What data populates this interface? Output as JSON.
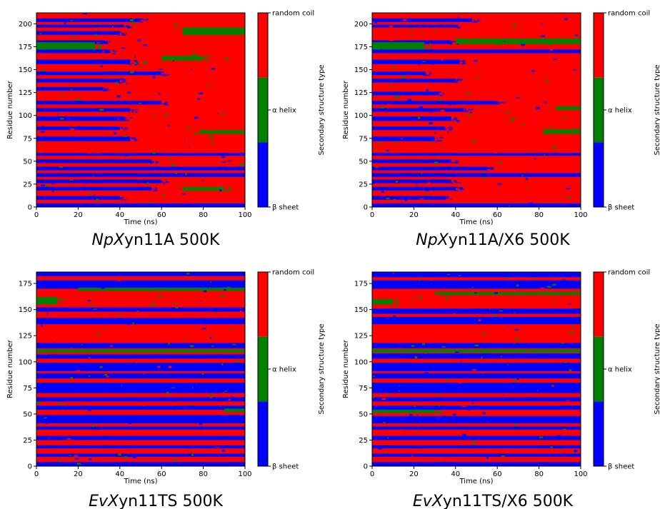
{
  "legend_colors": {
    "beta_sheet": "#0000ff",
    "alpha_helix": "#008000",
    "random_coil": "#ff0000"
  },
  "chart_data": [
    {
      "type": "heatmap",
      "caption": {
        "italic": "NpX",
        "rest": "yn11A 500K"
      },
      "xlabel": "Time (ns)",
      "ylabel": "Residue number",
      "xlim": [
        0,
        100
      ],
      "ylim": [
        0,
        212
      ],
      "xticks": [
        0,
        20,
        40,
        60,
        80,
        100
      ],
      "yticks": [
        0,
        25,
        50,
        75,
        100,
        125,
        150,
        175,
        200
      ],
      "colorbar": {
        "label": "Secondary structure type",
        "ticks": [
          "β sheet",
          "α helix",
          "random coil"
        ]
      },
      "bands": [
        {
          "y0": 0,
          "y1": 4,
          "state": "beta_sheet",
          "until": 100
        },
        {
          "y0": 8,
          "y1": 12,
          "state": "beta_sheet",
          "until": 40
        },
        {
          "y0": 18,
          "y1": 22,
          "state": "beta_sheet",
          "until": 55
        },
        {
          "y0": 26,
          "y1": 30,
          "state": "beta_sheet",
          "until": 60
        },
        {
          "y0": 33,
          "y1": 37,
          "state": "beta_sheet",
          "until": 100
        },
        {
          "y0": 40,
          "y1": 44,
          "state": "beta_sheet",
          "until": 100
        },
        {
          "y0": 48,
          "y1": 52,
          "state": "beta_sheet",
          "until": 55
        },
        {
          "y0": 56,
          "y1": 59,
          "state": "beta_sheet",
          "until": 100
        },
        {
          "y0": 72,
          "y1": 77,
          "state": "beta_sheet",
          "until": 45
        },
        {
          "y0": 84,
          "y1": 88,
          "state": "beta_sheet",
          "until": 40
        },
        {
          "y0": 94,
          "y1": 99,
          "state": "beta_sheet",
          "until": 42
        },
        {
          "y0": 104,
          "y1": 108,
          "state": "beta_sheet",
          "until": 45
        },
        {
          "y0": 112,
          "y1": 116,
          "state": "beta_sheet",
          "until": 60
        },
        {
          "y0": 127,
          "y1": 131,
          "state": "beta_sheet",
          "until": 32
        },
        {
          "y0": 136,
          "y1": 140,
          "state": "beta_sheet",
          "until": 40
        },
        {
          "y0": 144,
          "y1": 148,
          "state": "beta_sheet",
          "until": 60
        },
        {
          "y0": 156,
          "y1": 161,
          "state": "beta_sheet",
          "until": 45
        },
        {
          "y0": 168,
          "y1": 172,
          "state": "beta_sheet",
          "until": 35
        },
        {
          "y0": 178,
          "y1": 182,
          "state": "beta_sheet",
          "until": 33
        },
        {
          "y0": 188,
          "y1": 192,
          "state": "beta_sheet",
          "until": 40
        },
        {
          "y0": 196,
          "y1": 199,
          "state": "beta_sheet",
          "until": 42
        },
        {
          "y0": 202,
          "y1": 206,
          "state": "beta_sheet",
          "until": 50
        },
        {
          "y0": 172,
          "y1": 180,
          "state": "alpha_helix",
          "x0": 0,
          "until": 28
        },
        {
          "y0": 188,
          "y1": 196,
          "state": "alpha_helix",
          "x0": 70,
          "until": 100
        },
        {
          "y0": 160,
          "y1": 165,
          "state": "alpha_helix",
          "x0": 60,
          "until": 80
        },
        {
          "y0": 80,
          "y1": 84,
          "state": "alpha_helix",
          "x0": 78,
          "until": 100
        },
        {
          "y0": 18,
          "y1": 22,
          "state": "alpha_helix",
          "x0": 70,
          "until": 90
        }
      ]
    },
    {
      "type": "heatmap",
      "caption": {
        "italic": "NpX",
        "rest": "yn11A/X6 500K"
      },
      "xlabel": "Time (ns)",
      "ylabel": "Residue number",
      "xlim": [
        0,
        100
      ],
      "ylim": [
        0,
        212
      ],
      "xticks": [
        0,
        20,
        40,
        60,
        80,
        100
      ],
      "yticks": [
        0,
        25,
        50,
        75,
        100,
        125,
        150,
        175,
        200
      ],
      "colorbar": {
        "label": "Secondary structure type",
        "ticks": [
          "β sheet",
          "α helix",
          "random coil"
        ]
      },
      "bands": [
        {
          "y0": 0,
          "y1": 4,
          "state": "beta_sheet",
          "until": 100
        },
        {
          "y0": 8,
          "y1": 12,
          "state": "beta_sheet",
          "until": 35
        },
        {
          "y0": 18,
          "y1": 22,
          "state": "beta_sheet",
          "until": 40
        },
        {
          "y0": 26,
          "y1": 30,
          "state": "beta_sheet",
          "until": 38
        },
        {
          "y0": 33,
          "y1": 37,
          "state": "beta_sheet",
          "until": 100
        },
        {
          "y0": 40,
          "y1": 44,
          "state": "beta_sheet",
          "until": 55
        },
        {
          "y0": 48,
          "y1": 52,
          "state": "beta_sheet",
          "until": 38
        },
        {
          "y0": 56,
          "y1": 59,
          "state": "beta_sheet",
          "until": 100
        },
        {
          "y0": 72,
          "y1": 77,
          "state": "beta_sheet",
          "until": 30
        },
        {
          "y0": 84,
          "y1": 88,
          "state": "beta_sheet",
          "until": 35
        },
        {
          "y0": 94,
          "y1": 99,
          "state": "beta_sheet",
          "until": 38
        },
        {
          "y0": 104,
          "y1": 108,
          "state": "beta_sheet",
          "until": 45
        },
        {
          "y0": 112,
          "y1": 116,
          "state": "beta_sheet",
          "until": 60
        },
        {
          "y0": 122,
          "y1": 126,
          "state": "beta_sheet",
          "until": 32
        },
        {
          "y0": 136,
          "y1": 140,
          "state": "beta_sheet",
          "until": 40
        },
        {
          "y0": 144,
          "y1": 148,
          "state": "beta_sheet",
          "until": 25
        },
        {
          "y0": 156,
          "y1": 161,
          "state": "beta_sheet",
          "until": 42
        },
        {
          "y0": 168,
          "y1": 172,
          "state": "beta_sheet",
          "until": 100
        },
        {
          "y0": 178,
          "y1": 182,
          "state": "beta_sheet",
          "until": 38
        },
        {
          "y0": 196,
          "y1": 199,
          "state": "beta_sheet",
          "until": 40
        },
        {
          "y0": 202,
          "y1": 206,
          "state": "beta_sheet",
          "until": 48
        },
        {
          "y0": 172,
          "y1": 180,
          "state": "alpha_helix",
          "x0": 0,
          "until": 25
        },
        {
          "y0": 178,
          "y1": 184,
          "state": "alpha_helix",
          "x0": 40,
          "until": 100
        },
        {
          "y0": 80,
          "y1": 85,
          "state": "alpha_helix",
          "x0": 82,
          "until": 100
        },
        {
          "y0": 106,
          "y1": 110,
          "state": "alpha_helix",
          "x0": 88,
          "until": 100
        }
      ]
    },
    {
      "type": "heatmap",
      "caption": {
        "italic": "EvX",
        "rest": "yn11TS 500K"
      },
      "xlabel": "Time (ns)",
      "ylabel": "Residue number",
      "xlim": [
        0,
        100
      ],
      "ylim": [
        0,
        186
      ],
      "xticks": [
        0,
        20,
        40,
        60,
        80,
        100
      ],
      "yticks": [
        0,
        25,
        50,
        75,
        100,
        125,
        150,
        175
      ],
      "colorbar": {
        "label": "Secondary structure type",
        "ticks": [
          "β sheet",
          "α helix",
          "random coil"
        ]
      },
      "bands": [
        {
          "y0": 0,
          "y1": 4,
          "state": "beta_sheet",
          "until": 100
        },
        {
          "y0": 9,
          "y1": 12,
          "state": "beta_sheet",
          "until": 100
        },
        {
          "y0": 17,
          "y1": 20,
          "state": "beta_sheet",
          "until": 100
        },
        {
          "y0": 25,
          "y1": 29,
          "state": "beta_sheet",
          "until": 100
        },
        {
          "y0": 35,
          "y1": 38,
          "state": "beta_sheet",
          "until": 100
        },
        {
          "y0": 41,
          "y1": 49,
          "state": "beta_sheet",
          "until": 100
        },
        {
          "y0": 54,
          "y1": 58,
          "state": "beta_sheet",
          "until": 100
        },
        {
          "y0": 62,
          "y1": 66,
          "state": "beta_sheet",
          "until": 100
        },
        {
          "y0": 70,
          "y1": 80,
          "state": "beta_sheet",
          "until": 100
        },
        {
          "y0": 84,
          "y1": 89,
          "state": "beta_sheet",
          "until": 100
        },
        {
          "y0": 91,
          "y1": 99,
          "state": "beta_sheet",
          "until": 100
        },
        {
          "y0": 103,
          "y1": 107,
          "state": "beta_sheet",
          "until": 100
        },
        {
          "y0": 113,
          "y1": 118,
          "state": "beta_sheet",
          "until": 100
        },
        {
          "y0": 136,
          "y1": 142,
          "state": "beta_sheet",
          "until": 100
        },
        {
          "y0": 148,
          "y1": 152,
          "state": "beta_sheet",
          "until": 100
        },
        {
          "y0": 170,
          "y1": 178,
          "state": "beta_sheet",
          "until": 100
        },
        {
          "y0": 182,
          "y1": 186,
          "state": "beta_sheet",
          "until": 100
        },
        {
          "y0": 109,
          "y1": 112,
          "state": "alpha_helix",
          "x0": 0,
          "until": 100
        },
        {
          "y0": 155,
          "y1": 162,
          "state": "alpha_helix",
          "x0": 0,
          "until": 10
        },
        {
          "y0": 52,
          "y1": 55,
          "state": "alpha_helix",
          "x0": 90,
          "until": 100
        },
        {
          "y0": 168,
          "y1": 171,
          "state": "alpha_helix",
          "x0": 20,
          "until": 100
        }
      ]
    },
    {
      "type": "heatmap",
      "caption": {
        "italic": "EvX",
        "rest": "yn11TS/X6 500K"
      },
      "xlabel": "Time (ns)",
      "ylabel": "Residue number",
      "xlim": [
        0,
        100
      ],
      "ylim": [
        0,
        186
      ],
      "xticks": [
        0,
        20,
        40,
        60,
        80,
        100
      ],
      "yticks": [
        0,
        25,
        50,
        75,
        100,
        125,
        150,
        175
      ],
      "colorbar": {
        "label": "Secondary structure type",
        "ticks": [
          "β sheet",
          "α helix",
          "random coil"
        ]
      },
      "bands": [
        {
          "y0": 0,
          "y1": 4,
          "state": "beta_sheet",
          "until": 100
        },
        {
          "y0": 9,
          "y1": 12,
          "state": "beta_sheet",
          "until": 100
        },
        {
          "y0": 17,
          "y1": 20,
          "state": "beta_sheet",
          "until": 100
        },
        {
          "y0": 25,
          "y1": 29,
          "state": "beta_sheet",
          "until": 100
        },
        {
          "y0": 35,
          "y1": 38,
          "state": "beta_sheet",
          "until": 100
        },
        {
          "y0": 41,
          "y1": 48,
          "state": "beta_sheet",
          "until": 100
        },
        {
          "y0": 54,
          "y1": 58,
          "state": "beta_sheet",
          "until": 100
        },
        {
          "y0": 62,
          "y1": 66,
          "state": "beta_sheet",
          "until": 100
        },
        {
          "y0": 70,
          "y1": 80,
          "state": "beta_sheet",
          "until": 100
        },
        {
          "y0": 84,
          "y1": 89,
          "state": "beta_sheet",
          "until": 100
        },
        {
          "y0": 91,
          "y1": 99,
          "state": "beta_sheet",
          "until": 100
        },
        {
          "y0": 103,
          "y1": 108,
          "state": "beta_sheet",
          "until": 100
        },
        {
          "y0": 113,
          "y1": 118,
          "state": "beta_sheet",
          "until": 100
        },
        {
          "y0": 136,
          "y1": 143,
          "state": "beta_sheet",
          "until": 100
        },
        {
          "y0": 146,
          "y1": 151,
          "state": "beta_sheet",
          "until": 100
        },
        {
          "y0": 170,
          "y1": 178,
          "state": "beta_sheet",
          "until": 100
        },
        {
          "y0": 181,
          "y1": 186,
          "state": "beta_sheet",
          "until": 100
        },
        {
          "y0": 109,
          "y1": 112,
          "state": "alpha_helix",
          "x0": 0,
          "until": 100
        },
        {
          "y0": 155,
          "y1": 160,
          "state": "alpha_helix",
          "x0": 0,
          "until": 10
        },
        {
          "y0": 51,
          "y1": 54,
          "state": "alpha_helix",
          "x0": 0,
          "until": 30
        },
        {
          "y0": 164,
          "y1": 167,
          "state": "alpha_helix",
          "x0": 30,
          "until": 100
        }
      ]
    }
  ]
}
